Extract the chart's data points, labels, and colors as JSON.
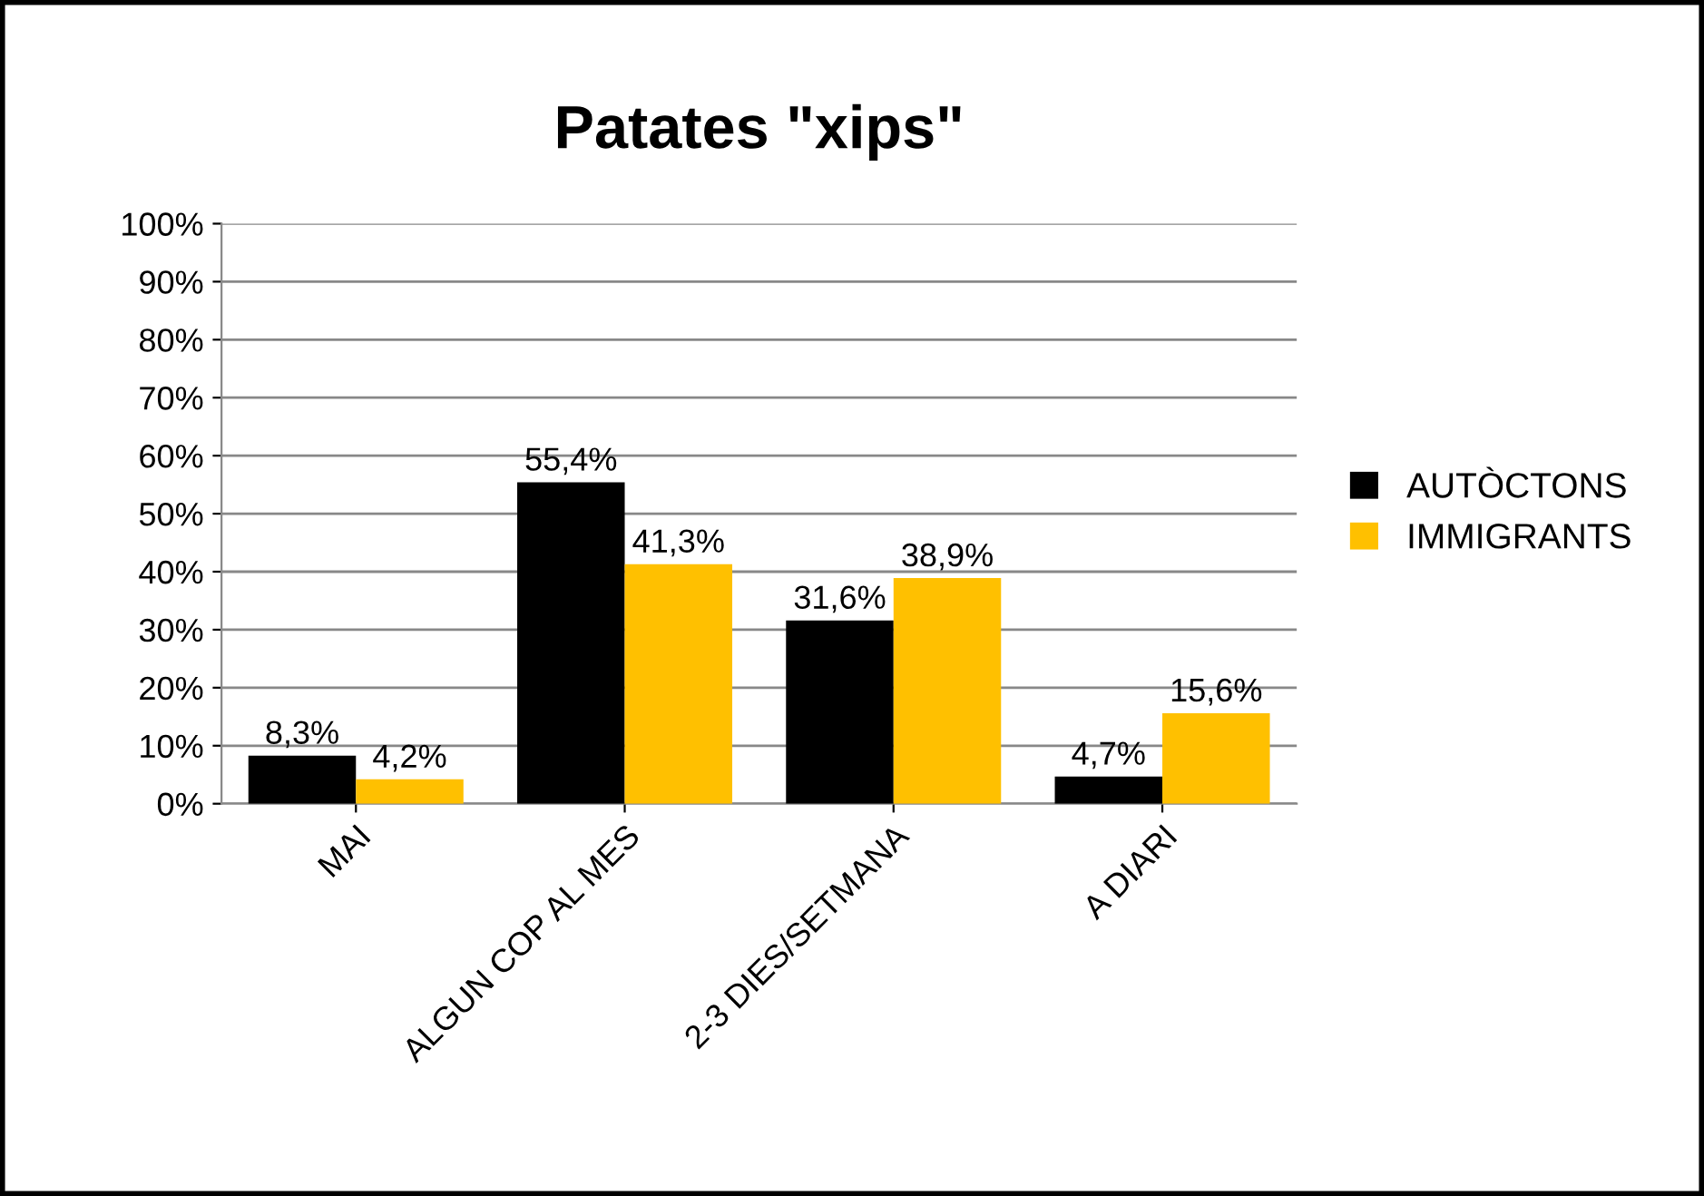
{
  "chart_data": {
    "type": "bar",
    "title": "Patates \"xips\"",
    "categories": [
      "MAI",
      "ALGUN COP AL MES",
      "2-3 DIES/SETMANA",
      "A DIARI"
    ],
    "series": [
      {
        "name": "AUTÒCTONS",
        "color": "#000000",
        "values": [
          8.3,
          55.4,
          31.6,
          4.7
        ],
        "value_labels": [
          "8,3%",
          "55,4%",
          "31,6%",
          "4,7%"
        ]
      },
      {
        "name": "IMMIGRANTS",
        "color": "#ffc000",
        "values": [
          4.2,
          41.3,
          38.9,
          15.6
        ],
        "value_labels": [
          "4,2%",
          "41,3%",
          "38,9%",
          "15,6%"
        ]
      }
    ],
    "ylim": [
      0,
      100
    ],
    "yticks": [
      {
        "value": 0,
        "label": "0%"
      },
      {
        "value": 10,
        "label": "10%"
      },
      {
        "value": 20,
        "label": "20%"
      },
      {
        "value": 30,
        "label": "30%"
      },
      {
        "value": 40,
        "label": "40%"
      },
      {
        "value": 50,
        "label": "50%"
      },
      {
        "value": 60,
        "label": "60%"
      },
      {
        "value": 70,
        "label": "70%"
      },
      {
        "value": 80,
        "label": "80%"
      },
      {
        "value": 90,
        "label": "90%"
      },
      {
        "value": 100,
        "label": "100%"
      }
    ],
    "grid": "y",
    "legend": "right"
  }
}
